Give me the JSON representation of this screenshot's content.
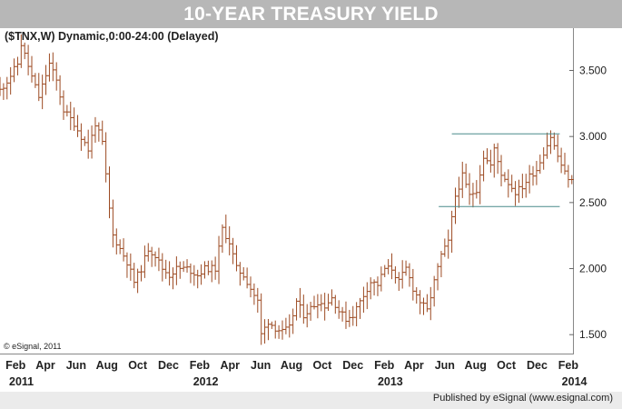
{
  "chart_data": {
    "type": "bar",
    "bar_style": "ohlc",
    "title": "10-YEAR TREASURY YIELD",
    "subtitle": "($TNX,W) Dynamic,0:00-24:00 (Delayed)",
    "copyright": "© eSignal, 2011",
    "footer": "Published by eSignal (www.esignal.com)",
    "x_range": [
      "2011-01-01",
      "2014-02-12"
    ],
    "ylim": [
      1.35,
      3.82
    ],
    "yticks": [
      "1.500",
      "2.000",
      "2.500",
      "3.000",
      "3.500"
    ],
    "month_labels": [
      {
        "label": "Feb",
        "date": "2011-02-01"
      },
      {
        "label": "Apr",
        "date": "2011-04-01"
      },
      {
        "label": "Jun",
        "date": "2011-06-01"
      },
      {
        "label": "Aug",
        "date": "2011-08-01"
      },
      {
        "label": "Oct",
        "date": "2011-10-01"
      },
      {
        "label": "Dec",
        "date": "2011-12-01"
      },
      {
        "label": "Feb",
        "date": "2012-02-01"
      },
      {
        "label": "Apr",
        "date": "2012-04-01"
      },
      {
        "label": "Jun",
        "date": "2012-06-01"
      },
      {
        "label": "Aug",
        "date": "2012-08-01"
      },
      {
        "label": "Oct",
        "date": "2012-10-01"
      },
      {
        "label": "Dec",
        "date": "2012-12-01"
      },
      {
        "label": "Feb",
        "date": "2013-02-01"
      },
      {
        "label": "Apr",
        "date": "2013-04-01"
      },
      {
        "label": "Jun",
        "date": "2013-06-01"
      },
      {
        "label": "Aug",
        "date": "2013-08-01"
      },
      {
        "label": "Oct",
        "date": "2013-10-01"
      },
      {
        "label": "Dec",
        "date": "2013-12-01"
      },
      {
        "label": "Feb",
        "date": "2014-02-01"
      }
    ],
    "year_labels": [
      {
        "label": "2011",
        "date": "2011-01-01"
      },
      {
        "label": "2012",
        "date": "2012-01-01"
      },
      {
        "label": "2013",
        "date": "2013-01-01"
      },
      {
        "label": "2014",
        "date": "2014-01-01"
      }
    ],
    "reference_lines": [
      {
        "value": 3.02,
        "start": "2013-06-15",
        "end": "2014-01-15"
      },
      {
        "value": 2.47,
        "start": "2013-05-20",
        "end": "2014-01-15"
      }
    ],
    "close_path": [
      [
        "2011-01-01",
        3.35
      ],
      [
        "2011-01-15",
        3.42
      ],
      [
        "2011-02-05",
        3.55
      ],
      [
        "2011-02-12",
        3.7
      ],
      [
        "2011-03-05",
        3.45
      ],
      [
        "2011-03-19",
        3.3
      ],
      [
        "2011-04-09",
        3.55
      ],
      [
        "2011-04-23",
        3.42
      ],
      [
        "2011-05-07",
        3.2
      ],
      [
        "2011-05-28",
        3.1
      ],
      [
        "2011-06-11",
        3.0
      ],
      [
        "2011-06-25",
        2.9
      ],
      [
        "2011-07-09",
        3.1
      ],
      [
        "2011-07-23",
        2.95
      ],
      [
        "2011-08-06",
        2.45
      ],
      [
        "2011-08-13",
        2.25
      ],
      [
        "2011-08-27",
        2.15
      ],
      [
        "2011-09-10",
        2.05
      ],
      [
        "2011-09-24",
        1.9
      ],
      [
        "2011-10-08",
        2.0
      ],
      [
        "2011-10-22",
        2.15
      ],
      [
        "2011-11-05",
        2.1
      ],
      [
        "2011-11-19",
        2.0
      ],
      [
        "2011-12-03",
        1.95
      ],
      [
        "2011-12-17",
        2.0
      ],
      [
        "2012-01-07",
        2.0
      ],
      [
        "2012-01-28",
        1.95
      ],
      [
        "2012-02-11",
        2.0
      ],
      [
        "2012-03-03",
        2.0
      ],
      [
        "2012-03-17",
        2.3
      ],
      [
        "2012-03-31",
        2.2
      ],
      [
        "2012-04-14",
        2.0
      ],
      [
        "2012-04-28",
        1.95
      ],
      [
        "2012-05-12",
        1.85
      ],
      [
        "2012-05-26",
        1.75
      ],
      [
        "2012-06-02",
        1.5
      ],
      [
        "2012-06-16",
        1.6
      ],
      [
        "2012-06-30",
        1.55
      ],
      [
        "2012-07-14",
        1.52
      ],
      [
        "2012-07-28",
        1.55
      ],
      [
        "2012-08-11",
        1.75
      ],
      [
        "2012-08-25",
        1.65
      ],
      [
        "2012-09-08",
        1.7
      ],
      [
        "2012-09-22",
        1.75
      ],
      [
        "2012-10-06",
        1.72
      ],
      [
        "2012-10-20",
        1.78
      ],
      [
        "2012-11-03",
        1.68
      ],
      [
        "2012-11-17",
        1.62
      ],
      [
        "2012-12-01",
        1.65
      ],
      [
        "2012-12-15",
        1.75
      ],
      [
        "2013-01-05",
        1.9
      ],
      [
        "2013-01-19",
        1.88
      ],
      [
        "2013-02-02",
        2.0
      ],
      [
        "2013-02-16",
        2.0
      ],
      [
        "2013-03-02",
        1.9
      ],
      [
        "2013-03-16",
        2.0
      ],
      [
        "2013-03-30",
        1.85
      ],
      [
        "2013-04-13",
        1.75
      ],
      [
        "2013-04-27",
        1.68
      ],
      [
        "2013-05-11",
        1.9
      ],
      [
        "2013-05-25",
        2.1
      ],
      [
        "2013-06-08",
        2.2
      ],
      [
        "2013-06-22",
        2.55
      ],
      [
        "2013-07-06",
        2.7
      ],
      [
        "2013-07-20",
        2.55
      ],
      [
        "2013-08-03",
        2.6
      ],
      [
        "2013-08-17",
        2.85
      ],
      [
        "2013-08-31",
        2.78
      ],
      [
        "2013-09-07",
        2.9
      ],
      [
        "2013-09-21",
        2.72
      ],
      [
        "2013-10-05",
        2.65
      ],
      [
        "2013-10-19",
        2.58
      ],
      [
        "2013-11-02",
        2.62
      ],
      [
        "2013-11-16",
        2.7
      ],
      [
        "2013-11-30",
        2.75
      ],
      [
        "2013-12-14",
        2.88
      ],
      [
        "2013-12-28",
        3.0
      ],
      [
        "2014-01-11",
        2.85
      ],
      [
        "2014-01-25",
        2.72
      ],
      [
        "2014-02-08",
        2.66
      ]
    ]
  }
}
